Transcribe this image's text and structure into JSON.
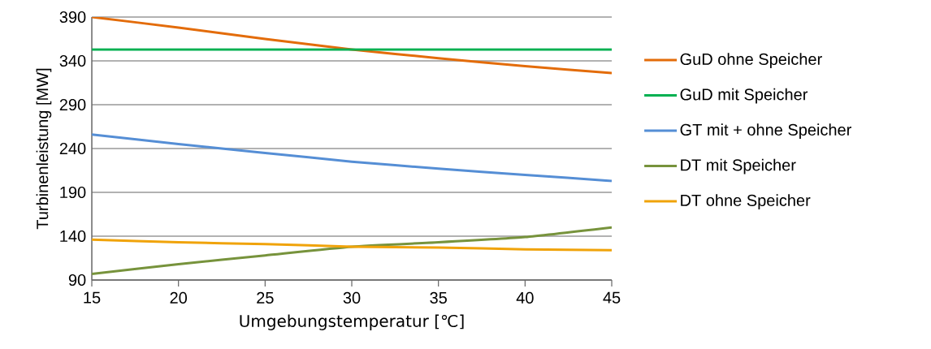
{
  "chart_data": {
    "type": "line",
    "xlabel": "Umgebungstemperatur [℃]",
    "ylabel": "Turbinenleistung [MW]",
    "x": [
      15,
      20,
      25,
      30,
      35,
      40,
      45
    ],
    "series": [
      {
        "name": "GuD ohne Speicher",
        "color": "#e36c0a",
        "values": [
          390,
          378,
          365,
          353,
          343,
          334,
          326
        ]
      },
      {
        "name": "GuD mit Speicher",
        "color": "#00b050",
        "values": [
          353,
          353,
          353,
          353,
          353,
          353,
          353
        ]
      },
      {
        "name": "GT mit + ohne Speicher",
        "color": "#558ed5",
        "values": [
          256,
          245,
          235,
          225,
          217,
          210,
          203
        ]
      },
      {
        "name": "DT mit Speicher",
        "color": "#77933c",
        "values": [
          97,
          108,
          118,
          128,
          133,
          139,
          150
        ]
      },
      {
        "name": "DT ohne Speicher",
        "color": "#f0a30a",
        "values": [
          136,
          133,
          131,
          128,
          127,
          125,
          124
        ]
      }
    ],
    "xlim": [
      15,
      45
    ],
    "xticks": [
      15,
      20,
      25,
      30,
      35,
      40,
      45
    ],
    "ylim": [
      90,
      390
    ],
    "yticks": [
      90,
      140,
      190,
      240,
      290,
      340,
      390
    ],
    "grid": "y",
    "legend": "right",
    "marker": "none",
    "line_style": "solid"
  }
}
